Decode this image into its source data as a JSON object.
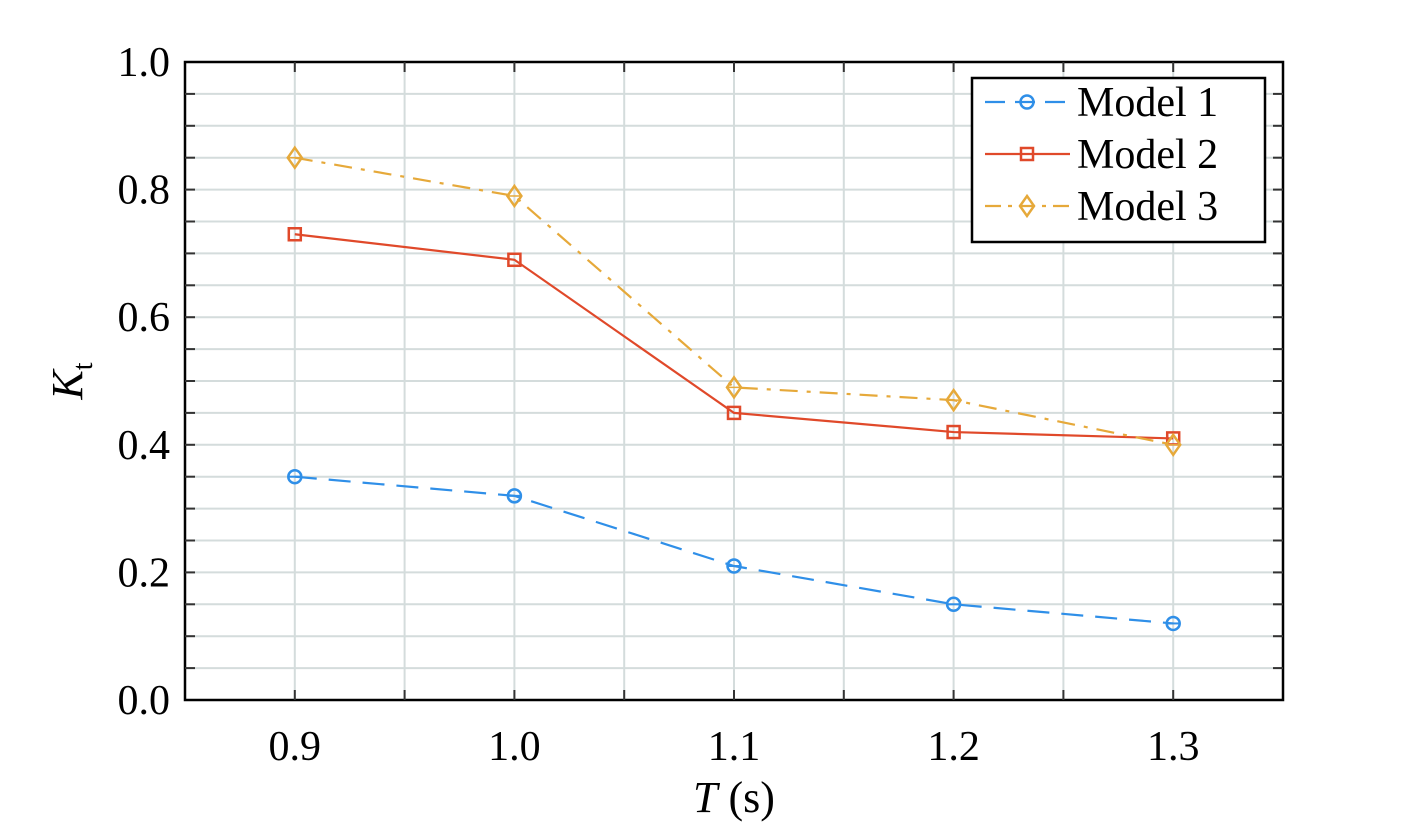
{
  "chart_data": {
    "type": "line",
    "title": "",
    "xlabel": "T (s)",
    "xlabel_italic": "T",
    "xlabel_unit": " (s)",
    "ylabel": "K_t",
    "ylabel_main": "K",
    "ylabel_sub": "t",
    "xlim": [
      0.85,
      1.35
    ],
    "ylim": [
      0.0,
      1.0
    ],
    "x": [
      0.9,
      1.0,
      1.1,
      1.2,
      1.3
    ],
    "xticks": [
      "0.9",
      "1.0",
      "1.1",
      "1.2",
      "1.3"
    ],
    "yticks": [
      "0.0",
      "0.2",
      "0.4",
      "0.6",
      "0.8",
      "1.0"
    ],
    "grid": true,
    "legend_position": "top-right",
    "series": [
      {
        "name": "Model 1",
        "values": [
          0.35,
          0.32,
          0.21,
          0.15,
          0.12
        ],
        "color": "#2f8fe8",
        "dash": "dashed",
        "marker": "circle"
      },
      {
        "name": "Model 2",
        "values": [
          0.73,
          0.69,
          0.45,
          0.42,
          0.41
        ],
        "color": "#e0492a",
        "dash": "solid",
        "marker": "square"
      },
      {
        "name": "Model 3",
        "values": [
          0.85,
          0.79,
          0.49,
          0.47,
          0.4
        ],
        "color": "#e6a93a",
        "dash": "dashdot",
        "marker": "diamond"
      }
    ]
  }
}
